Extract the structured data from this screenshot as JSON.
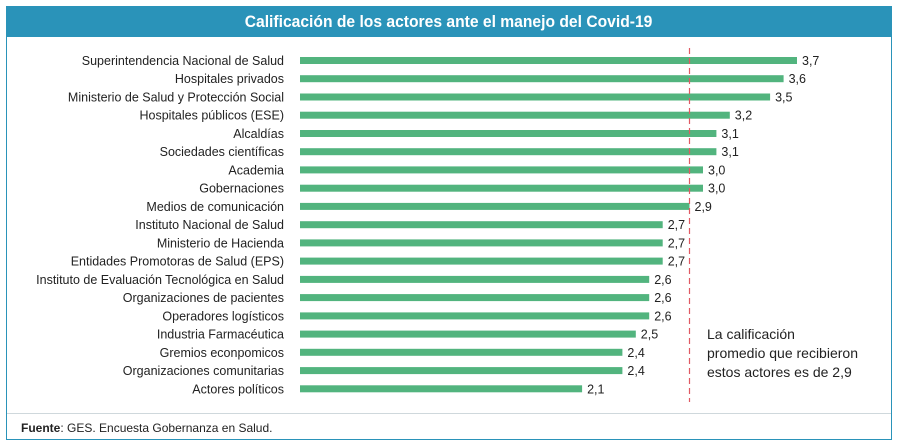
{
  "header": {
    "title": "Calificación de los actores ante el manejo del Covid-19"
  },
  "footer": {
    "source_label": "Fuente",
    "source_text": ": GES. Encuesta Gobernanza en Salud."
  },
  "note": {
    "lines": [
      "La calificación",
      "promedio que recibieron",
      "estos actores es de 2,9"
    ]
  },
  "colors": {
    "bar": "#52b47e",
    "average_line": "#e05a63",
    "header": "#2a93b9"
  },
  "chart_data": {
    "type": "bar",
    "orientation": "horizontal",
    "title": "Calificación de los actores ante el manejo del Covid-19",
    "categories": [
      "Superintendencia Nacional de Salud",
      "Hospitales privados",
      "Ministerio de Salud y Protección Social",
      "Hospitales públicos (ESE)",
      "Alcaldías",
      "Sociedades científicas",
      "Academia",
      "Gobernaciones",
      "Medios de comunicación",
      "Instituto Nacional de Salud",
      "Ministerio de Hacienda",
      "Entidades Promotoras de Salud (EPS)",
      "Instituto de Evaluación Tecnológica en Salud",
      "Organizaciones de pacientes",
      "Operadores logísticos",
      "Industria Farmacéutica",
      "Gremios econpomicos",
      "Organizaciones comunitarias",
      "Actores políticos"
    ],
    "values": [
      3.7,
      3.6,
      3.5,
      3.2,
      3.1,
      3.1,
      3.0,
      3.0,
      2.9,
      2.7,
      2.7,
      2.7,
      2.6,
      2.6,
      2.6,
      2.5,
      2.4,
      2.4,
      2.1
    ],
    "value_labels": [
      "3,7",
      "3,6",
      "3,5",
      "3,2",
      "3,1",
      "3,1",
      "3,0",
      "3,0",
      "2,9",
      "2,7",
      "2,7",
      "2,7",
      "2,6",
      "2,6",
      "2,6",
      "2,5",
      "2,4",
      "2,4",
      "2,1"
    ],
    "average": 2.9,
    "xlim": [
      0,
      3.7
    ],
    "grid": false,
    "legend": "none"
  }
}
